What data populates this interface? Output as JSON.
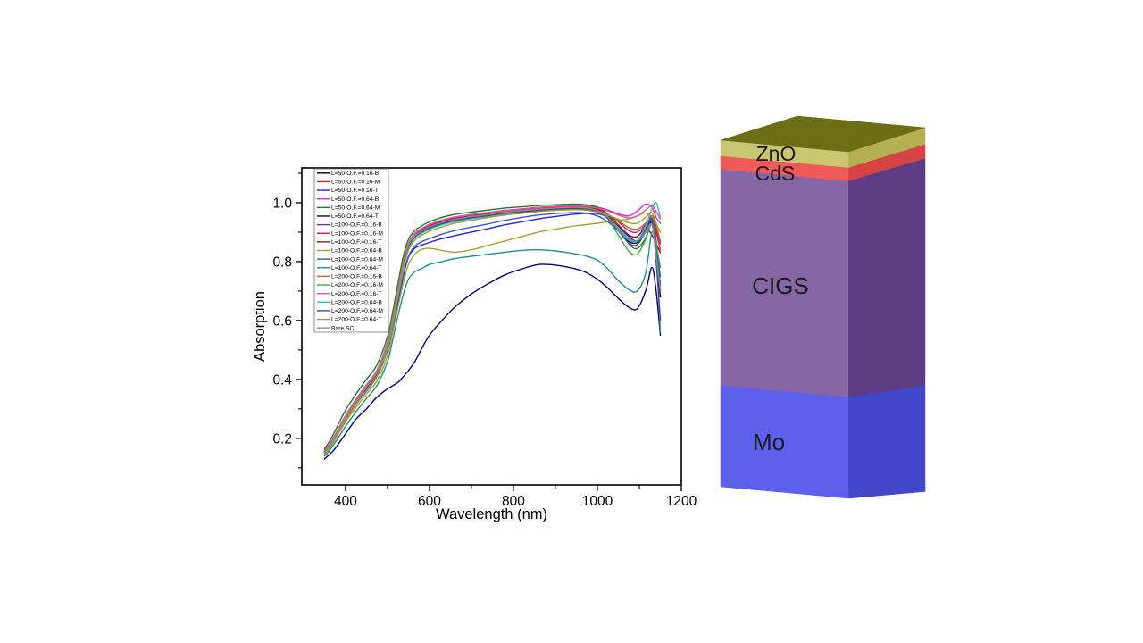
{
  "figure": {
    "background": "#ffffff"
  },
  "chart_data": {
    "type": "line",
    "title": "",
    "xlabel": "Wavelength (nm)",
    "ylabel": "Absorption",
    "xlim": [
      296,
      1200
    ],
    "ylim": [
      0.042,
      1.118
    ],
    "x_ticks": [
      400,
      600,
      800,
      1000,
      1200
    ],
    "x_minor_ticks": [
      500,
      700,
      900,
      1100
    ],
    "y_ticks": [
      0.2,
      0.4,
      0.6,
      0.8,
      1.0
    ],
    "y_minor_ticks": [
      0.1,
      0.3,
      0.5,
      0.7,
      0.9,
      1.1
    ],
    "grid": false,
    "legend_position": "top-left",
    "x": [
      350,
      362,
      375,
      400,
      425,
      450,
      475,
      500,
      512,
      525,
      538,
      550,
      565,
      580,
      600,
      630,
      660,
      700,
      740,
      780,
      820,
      860,
      900,
      940,
      970,
      1000,
      1025,
      1050,
      1075,
      1095,
      1115,
      1130,
      1140,
      1150
    ],
    "series": [
      {
        "name": "L=50-O.F.=0.16-B",
        "color": "#000000",
        "values": [
          0.155,
          0.175,
          0.205,
          0.27,
          0.325,
          0.375,
          0.425,
          0.52,
          0.6,
          0.7,
          0.795,
          0.855,
          0.89,
          0.905,
          0.92,
          0.935,
          0.945,
          0.955,
          0.962,
          0.97,
          0.975,
          0.98,
          0.984,
          0.986,
          0.985,
          0.975,
          0.95,
          0.905,
          0.868,
          0.865,
          0.9,
          0.93,
          0.82,
          0.68
        ]
      },
      {
        "name": "L=50-O.F.=0.16-M",
        "color": "#ee1d23",
        "values": [
          0.16,
          0.18,
          0.21,
          0.275,
          0.33,
          0.38,
          0.43,
          0.525,
          0.605,
          0.705,
          0.8,
          0.86,
          0.895,
          0.91,
          0.925,
          0.94,
          0.95,
          0.958,
          0.966,
          0.973,
          0.978,
          0.983,
          0.987,
          0.989,
          0.988,
          0.98,
          0.96,
          0.925,
          0.89,
          0.885,
          0.92,
          0.955,
          0.9,
          0.84
        ]
      },
      {
        "name": "L=50-O.F.=0.16-T",
        "color": "#2121e0",
        "values": [
          0.15,
          0.17,
          0.2,
          0.265,
          0.315,
          0.36,
          0.41,
          0.5,
          0.575,
          0.66,
          0.75,
          0.815,
          0.845,
          0.855,
          0.865,
          0.878,
          0.888,
          0.9,
          0.912,
          0.925,
          0.935,
          0.945,
          0.953,
          0.96,
          0.963,
          0.963,
          0.95,
          0.92,
          0.885,
          0.87,
          0.9,
          0.945,
          0.87,
          0.7
        ]
      },
      {
        "name": "L=50-O.F.=0.64-B",
        "color": "#e622e6",
        "values": [
          0.16,
          0.18,
          0.212,
          0.277,
          0.332,
          0.382,
          0.432,
          0.527,
          0.607,
          0.707,
          0.802,
          0.862,
          0.896,
          0.911,
          0.926,
          0.941,
          0.951,
          0.96,
          0.967,
          0.974,
          0.979,
          0.984,
          0.988,
          0.99,
          0.99,
          0.985,
          0.975,
          0.962,
          0.955,
          0.972,
          0.995,
          0.985,
          0.95,
          0.93
        ]
      },
      {
        "name": "L=50-O.F.=0.64-M",
        "color": "#1d7d1d",
        "values": [
          0.165,
          0.19,
          0.225,
          0.295,
          0.35,
          0.4,
          0.45,
          0.545,
          0.625,
          0.725,
          0.82,
          0.875,
          0.905,
          0.92,
          0.935,
          0.95,
          0.96,
          0.968,
          0.975,
          0.982,
          0.986,
          0.99,
          0.993,
          0.995,
          0.993,
          0.985,
          0.96,
          0.915,
          0.86,
          0.845,
          0.88,
          0.93,
          0.85,
          0.75
        ]
      },
      {
        "name": "L=50-O.F.=0.64-T",
        "color": "#00007d",
        "values": [
          0.13,
          0.145,
          0.165,
          0.215,
          0.265,
          0.3,
          0.34,
          0.368,
          0.378,
          0.39,
          0.41,
          0.43,
          0.46,
          0.5,
          0.55,
          0.6,
          0.645,
          0.69,
          0.725,
          0.755,
          0.775,
          0.79,
          0.788,
          0.778,
          0.765,
          0.74,
          0.71,
          0.675,
          0.645,
          0.64,
          0.7,
          0.78,
          0.7,
          0.55
        ]
      },
      {
        "name": "L=100-O.F.=0.16-B",
        "color": "#7b2fbe",
        "values": [
          0.157,
          0.177,
          0.207,
          0.272,
          0.327,
          0.377,
          0.427,
          0.522,
          0.602,
          0.702,
          0.797,
          0.857,
          0.892,
          0.907,
          0.922,
          0.937,
          0.947,
          0.957,
          0.964,
          0.972,
          0.977,
          0.982,
          0.985,
          0.987,
          0.986,
          0.977,
          0.955,
          0.915,
          0.875,
          0.87,
          0.91,
          0.94,
          0.84,
          0.72
        ]
      },
      {
        "name": "L=100-O.F.=0.16-M",
        "color": "#c4157f",
        "values": [
          0.152,
          0.172,
          0.202,
          0.267,
          0.322,
          0.372,
          0.422,
          0.517,
          0.597,
          0.697,
          0.792,
          0.852,
          0.886,
          0.901,
          0.916,
          0.931,
          0.941,
          0.951,
          0.958,
          0.966,
          0.971,
          0.976,
          0.98,
          0.982,
          0.982,
          0.976,
          0.96,
          0.935,
          0.905,
          0.9,
          0.925,
          0.95,
          0.91,
          0.86
        ]
      },
      {
        "name": "L=100-O.F.=0.16-T",
        "color": "#8d1616",
        "values": [
          0.156,
          0.176,
          0.206,
          0.271,
          0.326,
          0.376,
          0.426,
          0.521,
          0.601,
          0.701,
          0.796,
          0.856,
          0.891,
          0.906,
          0.921,
          0.936,
          0.946,
          0.956,
          0.963,
          0.971,
          0.976,
          0.981,
          0.984,
          0.986,
          0.985,
          0.976,
          0.95,
          0.92,
          0.89,
          0.885,
          0.915,
          0.89,
          0.86,
          0.83
        ]
      },
      {
        "name": "L=100-O.F.=0.64-B",
        "color": "#a8a22d",
        "values": [
          0.145,
          0.165,
          0.195,
          0.255,
          0.305,
          0.35,
          0.395,
          0.48,
          0.555,
          0.645,
          0.73,
          0.79,
          0.825,
          0.84,
          0.845,
          0.838,
          0.832,
          0.84,
          0.855,
          0.87,
          0.885,
          0.9,
          0.91,
          0.92,
          0.925,
          0.93,
          0.935,
          0.94,
          0.945,
          0.955,
          0.965,
          0.95,
          0.92,
          0.9
        ]
      },
      {
        "name": "L=100-O.F.=0.64-M",
        "color": "#3a52cc",
        "values": [
          0.15,
          0.17,
          0.2,
          0.263,
          0.315,
          0.362,
          0.41,
          0.5,
          0.578,
          0.668,
          0.755,
          0.818,
          0.852,
          0.866,
          0.878,
          0.893,
          0.905,
          0.917,
          0.928,
          0.94,
          0.95,
          0.958,
          0.963,
          0.966,
          0.965,
          0.955,
          0.935,
          0.905,
          0.875,
          0.87,
          0.905,
          0.945,
          0.86,
          0.72
        ]
      },
      {
        "name": "L=100-O.F.=0.64-T",
        "color": "#1d8f8f",
        "values": [
          0.14,
          0.158,
          0.185,
          0.24,
          0.29,
          0.335,
          0.38,
          0.46,
          0.53,
          0.615,
          0.69,
          0.74,
          0.765,
          0.775,
          0.79,
          0.8,
          0.81,
          0.818,
          0.825,
          0.832,
          0.838,
          0.84,
          0.836,
          0.828,
          0.82,
          0.805,
          0.775,
          0.735,
          0.705,
          0.7,
          0.76,
          0.9,
          0.82,
          0.56
        ]
      },
      {
        "name": "L=200-O.F.=0.16-B",
        "color": "#c2641c",
        "values": [
          0.151,
          0.171,
          0.201,
          0.266,
          0.321,
          0.371,
          0.421,
          0.516,
          0.596,
          0.696,
          0.791,
          0.851,
          0.886,
          0.901,
          0.916,
          0.931,
          0.941,
          0.951,
          0.958,
          0.966,
          0.971,
          0.976,
          0.98,
          0.982,
          0.981,
          0.973,
          0.96,
          0.94,
          0.915,
          0.91,
          0.93,
          0.955,
          0.92,
          0.87
        ]
      },
      {
        "name": "L=200-O.F.=0.16-M",
        "color": "#2fae48",
        "values": [
          0.153,
          0.173,
          0.203,
          0.268,
          0.323,
          0.373,
          0.423,
          0.518,
          0.598,
          0.698,
          0.793,
          0.853,
          0.888,
          0.903,
          0.918,
          0.933,
          0.943,
          0.953,
          0.96,
          0.968,
          0.973,
          0.978,
          0.982,
          0.984,
          0.983,
          0.972,
          0.945,
          0.89,
          0.835,
          0.825,
          0.875,
          0.93,
          0.86,
          0.78
        ]
      },
      {
        "name": "L=200-O.F.=0.16-T",
        "color": "#ea4fa0",
        "values": [
          0.158,
          0.178,
          0.21,
          0.276,
          0.331,
          0.381,
          0.431,
          0.526,
          0.606,
          0.706,
          0.801,
          0.861,
          0.895,
          0.91,
          0.925,
          0.94,
          0.95,
          0.959,
          0.966,
          0.973,
          0.978,
          0.983,
          0.987,
          0.989,
          0.988,
          0.982,
          0.972,
          0.958,
          0.948,
          0.955,
          0.975,
          0.99,
          0.97,
          0.945
        ]
      },
      {
        "name": "L=200-O.F.=0.64-B",
        "color": "#23c3d4",
        "values": [
          0.149,
          0.169,
          0.199,
          0.262,
          0.317,
          0.367,
          0.417,
          0.51,
          0.59,
          0.69,
          0.785,
          0.845,
          0.88,
          0.895,
          0.91,
          0.925,
          0.935,
          0.945,
          0.953,
          0.961,
          0.966,
          0.971,
          0.975,
          0.977,
          0.976,
          0.968,
          0.948,
          0.915,
          0.878,
          0.872,
          0.92,
          0.98,
          1.0,
          0.95
        ]
      },
      {
        "name": "L=200-O.F.=0.64-M",
        "color": "#4e3f95",
        "values": [
          0.152,
          0.172,
          0.202,
          0.266,
          0.321,
          0.369,
          0.419,
          0.514,
          0.594,
          0.694,
          0.789,
          0.849,
          0.884,
          0.899,
          0.914,
          0.929,
          0.939,
          0.949,
          0.956,
          0.964,
          0.969,
          0.974,
          0.978,
          0.98,
          0.979,
          0.97,
          0.947,
          0.905,
          0.862,
          0.858,
          0.9,
          0.935,
          0.8,
          0.6
        ]
      },
      {
        "name": "L=200-O.F.=0.64-T",
        "color": "#9f9f20",
        "values": [
          0.148,
          0.168,
          0.198,
          0.26,
          0.315,
          0.363,
          0.411,
          0.505,
          0.585,
          0.682,
          0.775,
          0.838,
          0.872,
          0.888,
          0.903,
          0.918,
          0.93,
          0.94,
          0.95,
          0.958,
          0.964,
          0.97,
          0.974,
          0.976,
          0.975,
          0.968,
          0.958,
          0.944,
          0.932,
          0.93,
          0.95,
          0.965,
          0.93,
          0.9
        ]
      },
      {
        "name": "Bare SC",
        "color": "#8c8c8c",
        "values": [
          0.154,
          0.174,
          0.204,
          0.269,
          0.324,
          0.374,
          0.424,
          0.519,
          0.599,
          0.699,
          0.794,
          0.854,
          0.888,
          0.903,
          0.918,
          0.933,
          0.943,
          0.953,
          0.96,
          0.968,
          0.973,
          0.978,
          0.982,
          0.984,
          0.983,
          0.973,
          0.95,
          0.908,
          0.872,
          0.868,
          0.9,
          0.925,
          0.82,
          0.7
        ]
      }
    ]
  },
  "diagram": {
    "label_color": "#1a1a1a",
    "layers": [
      {
        "label": "ZnO",
        "front": "#c9c672",
        "side": "#b4b052",
        "top": "#6d6d15"
      },
      {
        "label": "CdS",
        "front": "#ef5a58",
        "side": "#d64345"
      },
      {
        "label": "CIGS",
        "front": "#8766a6",
        "side": "#5e3c84"
      },
      {
        "label": "Mo",
        "front": "#5d60ea",
        "side": "#4347c9"
      }
    ]
  }
}
